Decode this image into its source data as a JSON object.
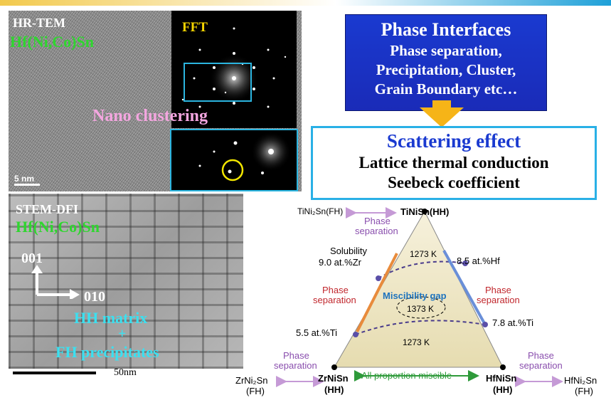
{
  "tem": {
    "title": "HR-TEM",
    "material": "Hf(Ni,Co)Sn",
    "fft_label": "FFT",
    "cluster_label": "Nano clustering",
    "scale": "5 nm"
  },
  "stem": {
    "title": "STEM-DFI",
    "material": "Hf(Ni,Co)Sn",
    "dir_001": "001",
    "dir_010": "010",
    "matrix": "HH matrix",
    "plus": "+",
    "precip": "FH precipitates",
    "scale": "50nm"
  },
  "phase_box": {
    "title": "Phase Interfaces",
    "line1": "Phase separation,",
    "line2": "Precipitation, Cluster,",
    "line3": "Grain Boundary etc…"
  },
  "scatter_box": {
    "title": "Scattering effect",
    "line1": "Lattice thermal conduction",
    "line2": "Seebeck coefficient"
  },
  "diagram": {
    "top_compound": "TiNiSn(HH)",
    "top_fh": "TiNi₂Sn(FH)",
    "top_phase1": "Phase",
    "top_phase2": "separation",
    "solubility": "Solubility",
    "zr_pct": "9.0 at.%Zr",
    "hf_pct": "8.5 at.%Hf",
    "t1273_top": "1273 K",
    "left_phase1": "Phase",
    "left_phase2": "separation",
    "right_phase1": "Phase",
    "right_phase2": "separation",
    "gap": "Miscibility gap",
    "t1373": "1373 K",
    "ti_left": "5.5 at.%Ti",
    "ti_right": "7.8 at.%Ti",
    "t1273_bottom": "1273 K",
    "bl_phase1": "Phase",
    "bl_phase2": "separation",
    "br_phase1": "Phase",
    "br_phase2": "separation",
    "zr_fh1": "ZrNi₂Sn",
    "zr_fh2": "(FH)",
    "zr_hh1": "ZrNiSn",
    "zr_hh2": "(HH)",
    "hf_hh1": "HfNiSn",
    "hf_hh2": "(HH)",
    "hf_fh1": "HfNi₂Sn",
    "hf_fh2": "(FH)",
    "miscible": "All proportion miscible"
  },
  "colors": {
    "blue_box": "#1a3ad0",
    "scatter_border": "#29b0e6",
    "arrow": "#f6b417",
    "phase_purple": "#8a4fae",
    "phase_red": "#c1272d",
    "gap_blue": "#1e73be",
    "miscible_green": "#2e9a3a",
    "triangle_fill": "#efe8c8"
  }
}
